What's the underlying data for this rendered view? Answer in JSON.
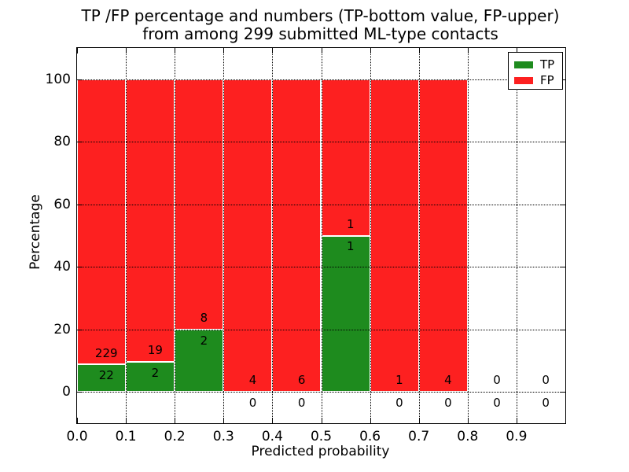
{
  "chart_data": {
    "type": "bar",
    "stacked": true,
    "title_line1": "TP /FP percentage and numbers (TP-bottom value, FP-upper)",
    "title_line2": "from among 299 submitted ML-type contacts",
    "xlabel": "Predicted probability",
    "ylabel": "Percentage",
    "x_ticks": [
      "0.0",
      "0.1",
      "0.2",
      "0.3",
      "0.4",
      "0.5",
      "0.6",
      "0.7",
      "0.8",
      "0.9"
    ],
    "y_ticks": [
      "0",
      "20",
      "40",
      "60",
      "80",
      "100"
    ],
    "xlim": [
      0.0,
      1.0
    ],
    "ylim": [
      -10,
      110
    ],
    "grid": "dotted",
    "legend_position": "upper-right",
    "total_contacts": 299,
    "bin_width": 0.1,
    "bin_starts": [
      0.0,
      0.1,
      0.2,
      0.3,
      0.4,
      0.5,
      0.6,
      0.7,
      0.8,
      0.9
    ],
    "series": [
      {
        "name": "TP",
        "color": "#1e8b1e",
        "counts": [
          22,
          2,
          2,
          0,
          0,
          1,
          0,
          0,
          0,
          0
        ]
      },
      {
        "name": "FP",
        "color": "#fd2020",
        "counts": [
          229,
          19,
          8,
          4,
          6,
          1,
          1,
          4,
          0,
          0
        ]
      }
    ],
    "bar_edge_color": "#ffffff",
    "annotation_color": "#000000"
  }
}
